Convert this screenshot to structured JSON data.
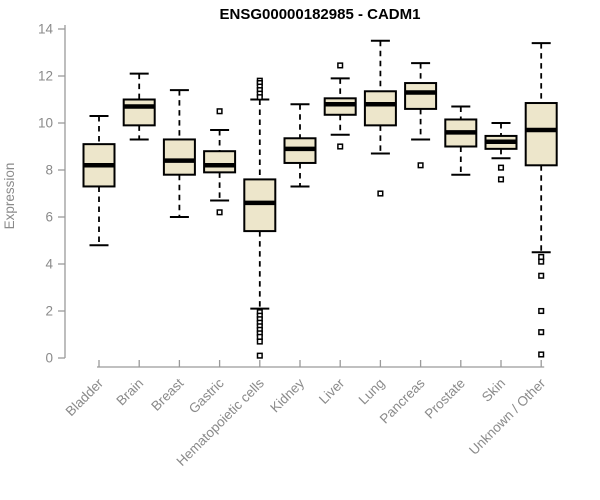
{
  "colors": {
    "box_fill": "#EDE6CB",
    "box_stroke": "#000000",
    "median_color": "#000000",
    "whisker_color": "#000000",
    "axis_line_color": "#9a9a9a",
    "axis_text_color": "#8a8a8a",
    "title_color": "#000000",
    "background": "#FFFFFF"
  },
  "chart_data": {
    "type": "boxplot",
    "title": "ENSG00000182985 - CADM1",
    "xlabel": "",
    "ylabel": "Expression",
    "ylim": [
      0,
      14
    ],
    "yticks": [
      0,
      2,
      4,
      6,
      8,
      10,
      12,
      14
    ],
    "grid": false,
    "legend": false,
    "categories": [
      "Bladder",
      "Brain",
      "Breast",
      "Gastric",
      "Hematopoietic cells",
      "Kidney",
      "Liver",
      "Lung",
      "Pancreas",
      "Prostate",
      "Skin",
      "Unknown / Other"
    ],
    "boxes": [
      {
        "label": "Bladder",
        "low": 4.8,
        "q1": 7.3,
        "median": 8.2,
        "q3": 9.1,
        "high": 10.3,
        "outliers": []
      },
      {
        "label": "Brain",
        "low": 9.3,
        "q1": 9.9,
        "median": 10.7,
        "q3": 11.0,
        "high": 12.1,
        "outliers": []
      },
      {
        "label": "Breast",
        "low": 6.0,
        "q1": 7.8,
        "median": 8.4,
        "q3": 9.3,
        "high": 11.4,
        "outliers": []
      },
      {
        "label": "Gastric",
        "low": 6.7,
        "q1": 7.9,
        "median": 8.2,
        "q3": 8.8,
        "high": 9.7,
        "outliers": [
          10.5,
          6.2
        ]
      },
      {
        "label": "Hematopoietic cells",
        "low": 2.1,
        "q1": 5.4,
        "median": 6.6,
        "q3": 7.6,
        "high": 11.0,
        "outliers": [
          11.8,
          11.7,
          11.55,
          11.4,
          11.25,
          11.1,
          1.95,
          1.8,
          1.65,
          1.5,
          1.35,
          1.2,
          1.05,
          0.9,
          0.7,
          0.1
        ]
      },
      {
        "label": "Kidney",
        "low": 7.3,
        "q1": 8.3,
        "median": 8.9,
        "q3": 9.35,
        "high": 10.8,
        "outliers": []
      },
      {
        "label": "Liver",
        "low": 9.5,
        "q1": 10.35,
        "median": 10.8,
        "q3": 11.05,
        "high": 11.9,
        "outliers": [
          12.45,
          9.0
        ]
      },
      {
        "label": "Lung",
        "low": 8.7,
        "q1": 9.9,
        "median": 10.8,
        "q3": 11.35,
        "high": 13.5,
        "outliers": [
          7.0
        ]
      },
      {
        "label": "Pancreas",
        "low": 9.3,
        "q1": 10.6,
        "median": 11.3,
        "q3": 11.7,
        "high": 12.55,
        "outliers": [
          8.2
        ]
      },
      {
        "label": "Prostate",
        "low": 7.8,
        "q1": 9.0,
        "median": 9.6,
        "q3": 10.15,
        "high": 10.7,
        "outliers": []
      },
      {
        "label": "Skin",
        "low": 8.5,
        "q1": 8.9,
        "median": 9.2,
        "q3": 9.45,
        "high": 10.0,
        "outliers": [
          8.1,
          7.6
        ]
      },
      {
        "label": "Unknown / Other",
        "low": 4.5,
        "q1": 8.2,
        "median": 9.7,
        "q3": 10.85,
        "high": 13.4,
        "outliers": [
          4.3,
          4.1,
          3.5,
          2.0,
          1.1,
          0.15
        ]
      }
    ]
  }
}
